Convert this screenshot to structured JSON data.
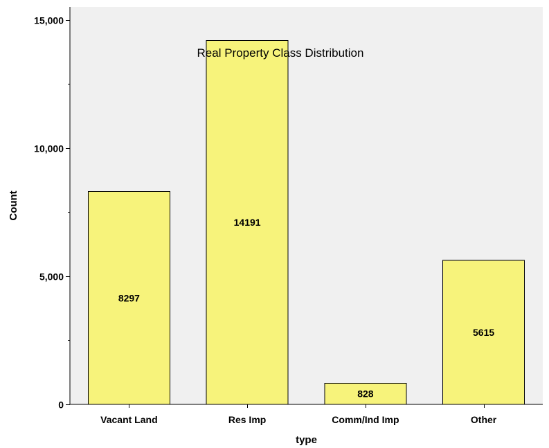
{
  "chart_data": {
    "type": "bar",
    "title": "Real Property Class Distribution",
    "xlabel": "type",
    "ylabel": "Count",
    "categories": [
      "Vacant Land",
      "Res Imp",
      "Comm/Ind Imp",
      "Other"
    ],
    "values": [
      8297,
      14191,
      828,
      5615
    ],
    "data_labels": [
      "8297",
      "14191",
      "828",
      "5615"
    ],
    "ylim": [
      0,
      15500
    ],
    "y_ticks": [
      {
        "value": 0,
        "label": "0"
      },
      {
        "value": 5000,
        "label": "5,000"
      },
      {
        "value": 10000,
        "label": "10,000"
      },
      {
        "value": 15000,
        "label": "15,000"
      }
    ],
    "y_minor_ticks": [
      2500,
      7500,
      12500
    ],
    "grid": false,
    "legend": "none",
    "colors": {
      "bar_fill": "#f7f37b",
      "bar_stroke": "#000000",
      "plot_background": "#f0f0f0",
      "page_background": "#ffffff"
    }
  }
}
